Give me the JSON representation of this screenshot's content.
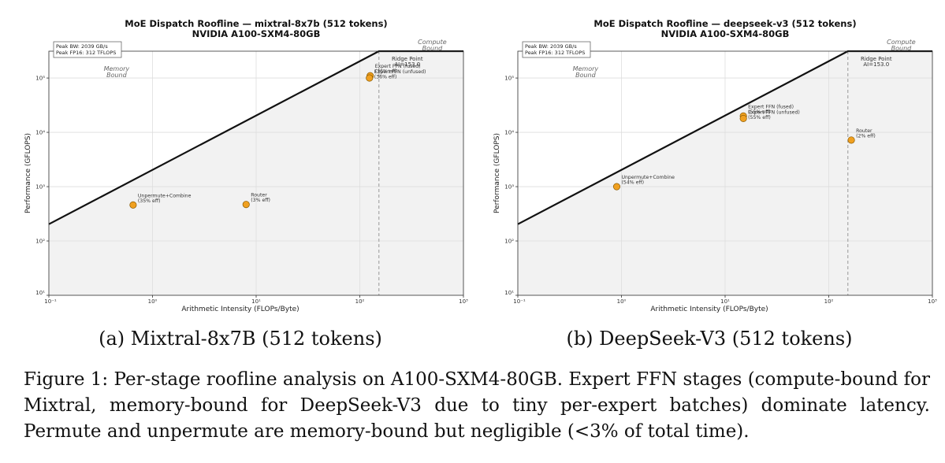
{
  "figure": {
    "caption_a": "(a) Mixtral-8x7B (512 tokens)",
    "caption_b": "(b) DeepSeek-V3 (512 tokens)",
    "caption": "Figure 1: Per-stage roofline analysis on A100-SXM4-80GB. Expert FFN stages (compute-bound for Mixtral, memory-bound for DeepSeek-V3 due to tiny per-expert batches) dominate latency. Permute and unpermute are memory-bound but negligible (<3% of total time)."
  },
  "chart_data": [
    {
      "type": "scatter",
      "title": "MoE Dispatch Roofline — mixtral-8x7b (512 tokens)",
      "subtitle": "NVIDIA A100-SXM4-80GB",
      "xlabel": "Arithmetic Intensity (FLOPs/Byte)",
      "ylabel": "Performance (GFLOPS)",
      "xscale": "log",
      "yscale": "log",
      "xlim": [
        0.1,
        1000
      ],
      "ylim": [
        10,
        312000
      ],
      "x_ticks": [
        "10⁻¹",
        "10⁰",
        "10¹",
        "10²",
        "10³"
      ],
      "y_ticks": [
        "10¹",
        "10²",
        "10³",
        "10⁴",
        "10⁵"
      ],
      "grid": true,
      "roofline": {
        "peak_bw": "Peak BW: 2039 GB/s",
        "peak_fp16": "Peak FP16: 312 TFLOPS",
        "bandwidth_gbps": 2039,
        "peak_gflops": 312000,
        "ridge_point": 153.0,
        "ridge_label": "Ridge Point\nAI=153.0",
        "memory_label": "Memory\nBound",
        "compute_label": "Compute\nBound"
      },
      "points": [
        {
          "label": "Unpermute+Combine\n(35% eff)",
          "x": 0.65,
          "y": 460
        },
        {
          "label": "Router\n(3% eff)",
          "x": 8.0,
          "y": 470
        },
        {
          "label": "Expert FFN (fused)\n(36% eff)",
          "x": 126,
          "y": 110000
        },
        {
          "label": "Expert FFN (unfused)\n(36% eff)",
          "x": 124,
          "y": 100000
        }
      ],
      "point_color": "#f0a020"
    },
    {
      "type": "scatter",
      "title": "MoE Dispatch Roofline — deepseek-v3 (512 tokens)",
      "subtitle": "NVIDIA A100-SXM4-80GB",
      "xlabel": "Arithmetic Intensity (FLOPs/Byte)",
      "ylabel": "Performance (GFLOPS)",
      "xscale": "log",
      "yscale": "log",
      "xlim": [
        0.1,
        1000
      ],
      "ylim": [
        10,
        312000
      ],
      "x_ticks": [
        "10⁻¹",
        "10⁰",
        "10¹",
        "10²",
        "10³"
      ],
      "y_ticks": [
        "10¹",
        "10²",
        "10³",
        "10⁴",
        "10⁵"
      ],
      "grid": true,
      "roofline": {
        "peak_bw": "Peak BW: 2039 GB/s",
        "peak_fp16": "Peak FP16: 312 TFLOPS",
        "bandwidth_gbps": 2039,
        "peak_gflops": 312000,
        "ridge_point": 153.0,
        "ridge_label": "Ridge Point\nAI=153.0",
        "memory_label": "Memory\nBound",
        "compute_label": "Compute\nBound"
      },
      "points": [
        {
          "label": "Unpermute+Combine\n(54% eff)",
          "x": 0.9,
          "y": 1000
        },
        {
          "label": "Router\n(2% eff)",
          "x": 165,
          "y": 7200
        },
        {
          "label": "Expert FFN (fused)\n(55% eff)",
          "x": 15,
          "y": 20000
        },
        {
          "label": "Expert FFN (unfused)\n(55% eff)",
          "x": 15,
          "y": 18000
        }
      ],
      "point_color": "#f0a020"
    }
  ]
}
